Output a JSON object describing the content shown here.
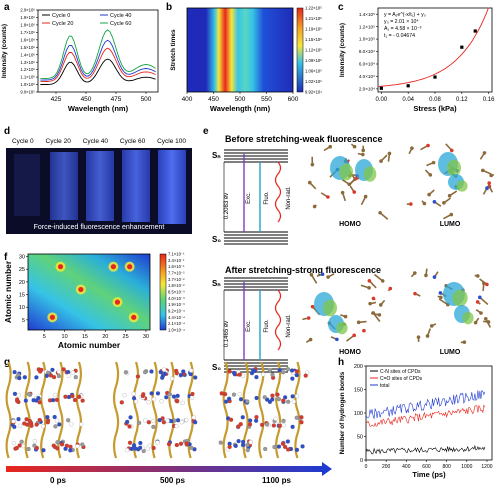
{
  "panels": {
    "a": "a",
    "b": "b",
    "c": "c",
    "d": "d",
    "e": "e",
    "f": "f",
    "g": "g",
    "h": "h"
  },
  "colors": {
    "cycle0": "#000000",
    "cycle20": "#e8261c",
    "cycle40": "#1f3bd1",
    "cycle60": "#16a34a",
    "hb_cn": "#000000",
    "hb_co": "#e8261c",
    "hb_total": "#1f3bd1",
    "fit_line": "#e8261c",
    "uv_bg": "#0b0d28",
    "uv_stripe": "#3d5bd9"
  },
  "chart_a": {
    "type": "line",
    "xlabel": "Wavelength (nm)",
    "ylabel": "Intensity (counts)",
    "xlim": [
      410,
      510
    ],
    "ylim": [
      0.9,
      2.0
    ],
    "x_ticks": [
      "425",
      "450",
      "475",
      "500"
    ],
    "y_ticks": [
      "9.0×10⁵",
      "1.0×10⁶",
      "1.1×10⁶",
      "1.2×10⁶",
      "1.3×10⁶",
      "1.4×10⁶",
      "1.5×10⁶",
      "1.6×10⁶",
      "1.7×10⁶",
      "1.8×10⁶",
      "1.9×10⁶",
      "2.0×10⁶"
    ],
    "legend": [
      "Cycle 0",
      "Cycle 40",
      "Cycle 20",
      "Cycle 60"
    ]
  },
  "chart_b": {
    "type": "heatmap",
    "xlabel": "Wavelength (nm)",
    "ylabel": "Stretch times",
    "x_ticks": [
      "400",
      "450",
      "500",
      "550",
      "600"
    ],
    "colorbar": [
      "1.22×10⁵",
      "1.21×10⁵",
      "1.19×10⁵",
      "1.15×10⁵",
      "1.12×10⁵",
      "1.09×10⁵",
      "1.06×10⁵",
      "1.02×10⁵",
      "9.92×10⁴"
    ]
  },
  "chart_c": {
    "type": "scatter",
    "xlabel": "Stress (kPa)",
    "ylabel": "Intensity (counts)",
    "x_ticks": [
      "0.00",
      "0.04",
      "0.08",
      "0.12",
      "0.16"
    ],
    "y_ticks": [
      "2.0×10⁴",
      "4.0×10⁴",
      "6.0×10⁴",
      "8.0×10⁴",
      "1.0×10⁵",
      "1.2×10⁵",
      "1.4×10⁵"
    ],
    "equation": [
      "y = A₁e^(-x/t₁) + y₀",
      "y₀ = 2.01 × 10⁴",
      "A₁ = 4.58 × 10⁻³",
      "t₁ = - 0.04674"
    ],
    "points": [
      {
        "x": 0.0,
        "y": 21000
      },
      {
        "x": 0.04,
        "y": 25000
      },
      {
        "x": 0.08,
        "y": 39000
      },
      {
        "x": 0.12,
        "y": 87000
      },
      {
        "x": 0.14,
        "y": 113000
      }
    ]
  },
  "panel_d": {
    "labels": [
      "Cycle 0",
      "Cycle 20",
      "Cycle 40",
      "Cycle 60",
      "Cycle 100"
    ],
    "caption": "Force-induced fluorescence enhancement"
  },
  "panel_e": {
    "title_before": "Before stretching-weak fluorescence",
    "title_after": "After stretching-strong fluorescence",
    "s_n": "Sₙ",
    "s_0": "S₀",
    "energy_before": "0.2083 ev",
    "energy_after": "0.1465 ev",
    "exc": "Exc.",
    "fluo": "Fluo.",
    "nonrad": "Non-rad.",
    "homo": "HOMO",
    "lumo": "LUMO"
  },
  "chart_f": {
    "type": "heatmap",
    "xlabel": "Atomic number",
    "ylabel": "Atomic number",
    "x_ticks": [
      "5",
      "10",
      "15",
      "20",
      "25",
      "30"
    ],
    "y_ticks": [
      "5",
      "10",
      "15",
      "20",
      "25",
      "30"
    ],
    "colorbar": [
      "7.1×10⁻¹",
      "3.4×10⁻¹",
      "1.6×10⁻¹",
      "7.7×10⁻²",
      "3.7×10⁻²",
      "1.8×10⁻²",
      "8.5×10⁻³",
      "4.0×10⁻³",
      "1.9×10⁻³",
      "9.2×10⁻⁴",
      "4.4×10⁻⁴",
      "2.1×10⁻⁴",
      "1.0×10⁻⁴"
    ]
  },
  "panel_g": {
    "times": [
      "0 ps",
      "500 ps",
      "1100 ps"
    ]
  },
  "chart_h": {
    "type": "line",
    "xlabel": "Time (ps)",
    "ylabel": "Number of hydrogen bonds",
    "x_ticks": [
      "0",
      "200",
      "400",
      "600",
      "800",
      "1000",
      "1200"
    ],
    "y_ticks": [
      "0",
      "50",
      "100",
      "150",
      "200"
    ],
    "ylim": [
      0,
      200
    ],
    "legend": [
      "C-N sites of CPDs",
      "C=O sites of CPDs",
      "total"
    ]
  }
}
